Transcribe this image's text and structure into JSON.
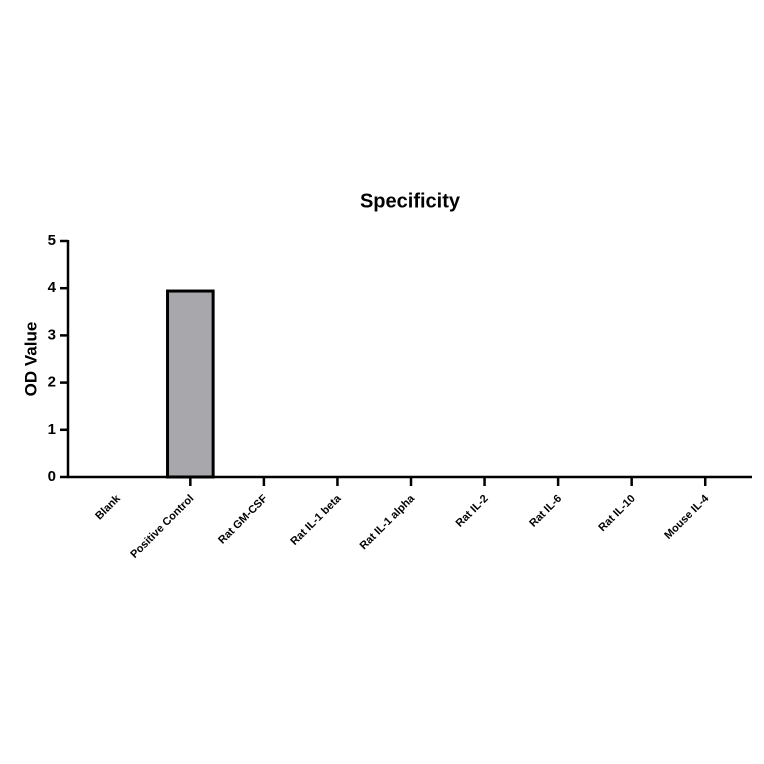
{
  "chart_data": {
    "type": "bar",
    "title": "Specificity",
    "y_label": "OD Value",
    "categories": [
      "Blank",
      "Positive Control",
      "Rat GM-CSF",
      "Rat IL-1 beta",
      "Rat IL-1 alpha",
      "Rat IL-2",
      "Rat IL-6",
      "Rat IL-10",
      "Mouse IL-4"
    ],
    "values": [
      0,
      3.94,
      0,
      0,
      0,
      0,
      0,
      0,
      0
    ],
    "color": "#a7a7ac",
    "ylim": [
      0,
      5
    ],
    "yticks": [
      0,
      1,
      2,
      3,
      4,
      5
    ],
    "grid": false
  }
}
